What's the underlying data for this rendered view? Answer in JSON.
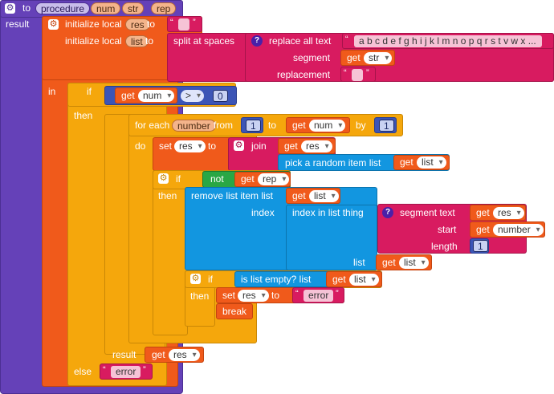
{
  "procedure": {
    "to_label": "to",
    "name": "procedure",
    "params": [
      "num",
      "str",
      "rep"
    ],
    "result_label": "result"
  },
  "init": {
    "label": "initialize local",
    "to": "to",
    "var_res": "res",
    "var_list": "list",
    "res_value": "",
    "split_label": "split at spaces",
    "replace_label": "replace all text",
    "alphabet": "a b c d e f g h i j k l m n o p q r s t v w x ...",
    "segment_label": "segment",
    "replacement_label": "replacement",
    "replacement_value": ""
  },
  "in_label": "in",
  "if1": {
    "if_label": "if",
    "get": "get",
    "num_var": "num",
    "op": ">",
    "zero": "0",
    "then_label": "then",
    "do_label": "do",
    "else_label": "else",
    "error_text": "error"
  },
  "foreach": {
    "label": "for each",
    "var": "number",
    "from_label": "from",
    "from_val": "1",
    "to_label": "to",
    "to_var": "num",
    "by_label": "by",
    "by_val": "1",
    "do_label": "do"
  },
  "setres": {
    "set_label": "set",
    "var": "res",
    "to_label": "to",
    "join_label": "join",
    "get_res": "res",
    "pick_label": "pick a random item  list",
    "get_list": "list"
  },
  "if2": {
    "if_label": "if",
    "not_label": "not",
    "get_rep": "rep",
    "then_label": "then"
  },
  "remove": {
    "label": "remove list item  list",
    "get_list": "list",
    "index_label": "index",
    "index_in_list": "index in list  thing",
    "segment_text_label": "segment  text",
    "get_res": "res",
    "start_label": "start",
    "get_number": "number",
    "length_label": "length",
    "length_val": "1",
    "list_label": "list",
    "get_list2": "list"
  },
  "if3": {
    "if_label": "if",
    "empty_label": "is list empty?  list",
    "get_list": "list",
    "then_label": "then",
    "set_label": "set",
    "var": "res",
    "to_label": "to",
    "error_text": "error",
    "break_label": "break"
  },
  "result_inner": {
    "label": "result",
    "get_res": "res"
  },
  "get_word": "get"
}
